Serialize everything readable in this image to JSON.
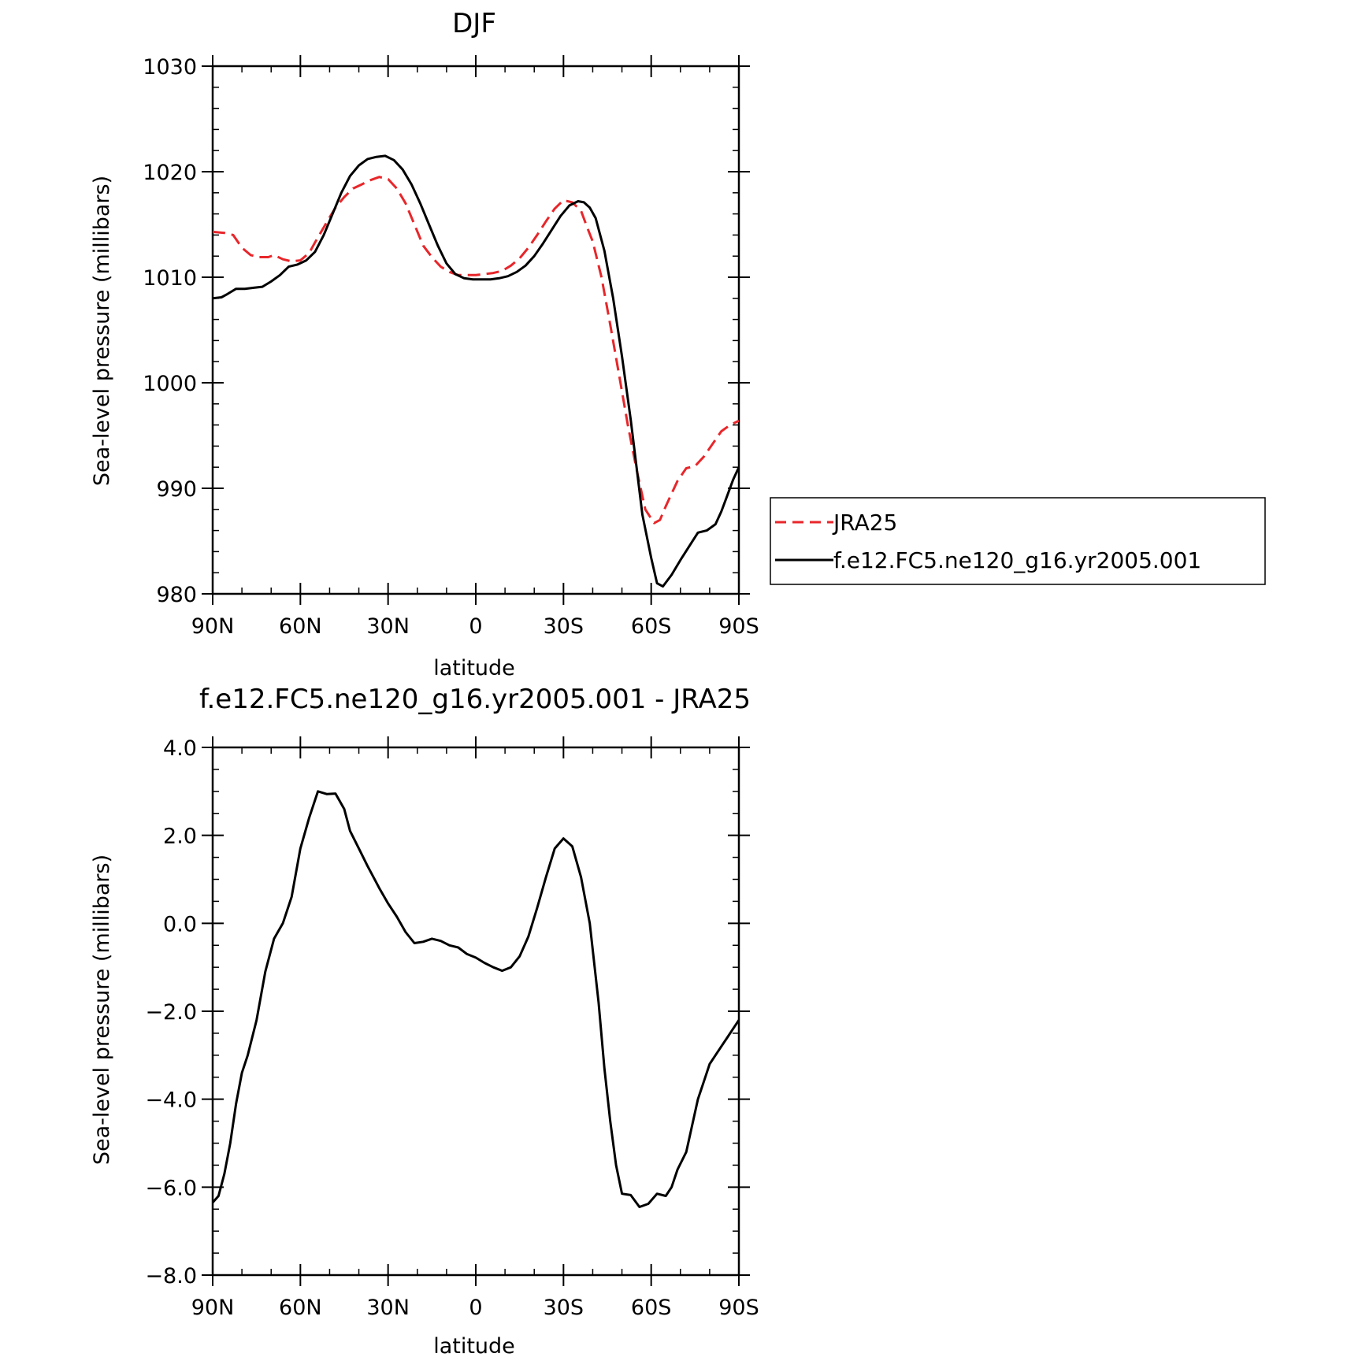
{
  "chart_data": [
    {
      "type": "line",
      "title": "DJF",
      "xlabel": "latitude",
      "ylabel": "Sea-level pressure (millibars)",
      "xlim": [
        90,
        -90
      ],
      "ylim": [
        980,
        1030
      ],
      "x_ticks": [
        90,
        60,
        30,
        0,
        -30,
        -60,
        -90
      ],
      "x_tick_labels": [
        "90N",
        "60N",
        "30N",
        "0",
        "30S",
        "60S",
        "90S"
      ],
      "y_ticks": [
        980,
        990,
        1000,
        1010,
        1020,
        1030
      ],
      "y_tick_labels": [
        "980",
        "990",
        "1000",
        "1010",
        "1020",
        "1030"
      ],
      "grid": false,
      "legend": "right",
      "series": [
        {
          "name": "JRA25",
          "color": "#e8262a",
          "dash": "dashed",
          "x": [
            90,
            86,
            83,
            80,
            77,
            74,
            71,
            69,
            66,
            63,
            60,
            57,
            55,
            51,
            48,
            45,
            42,
            39,
            36,
            33,
            30,
            27,
            24,
            21,
            18,
            15,
            12,
            9,
            6,
            3,
            0,
            -3,
            -6,
            -9,
            -12,
            -15,
            -18,
            -21,
            -24,
            -27,
            -30,
            -33,
            -36,
            -38,
            -40,
            -43,
            -46,
            -49,
            -52,
            -55,
            -58,
            -61,
            -63,
            -65,
            -67,
            -69,
            -72,
            -75,
            -78,
            -81,
            -84,
            -87,
            -90
          ],
          "y": [
            1014.3,
            1014.2,
            1014.0,
            1012.8,
            1012.1,
            1011.9,
            1011.9,
            1012.1,
            1011.7,
            1011.5,
            1011.6,
            1012.3,
            1013.3,
            1015.2,
            1016.6,
            1017.6,
            1018.4,
            1018.8,
            1019.2,
            1019.5,
            1019.3,
            1018.4,
            1017.0,
            1015.0,
            1013.0,
            1011.9,
            1011.0,
            1010.5,
            1010.2,
            1010.2,
            1010.2,
            1010.3,
            1010.4,
            1010.6,
            1011.1,
            1011.8,
            1012.8,
            1014.0,
            1015.3,
            1016.5,
            1017.3,
            1017.1,
            1016.3,
            1014.8,
            1013.4,
            1010.0,
            1005.5,
            1000.8,
            996.0,
            991.8,
            988.0,
            986.7,
            987.0,
            988.3,
            989.5,
            990.7,
            991.9,
            992.1,
            993.0,
            994.2,
            995.4,
            996.0,
            996.4
          ]
        },
        {
          "name": "f.e12.FC5.ne120_g16.yr2005.001",
          "color": "#000000",
          "dash": "solid",
          "x": [
            90,
            87,
            85,
            82,
            79,
            76,
            73,
            70,
            67,
            64,
            61,
            58,
            55,
            52,
            49,
            46,
            43,
            40,
            37,
            34,
            31,
            28,
            25,
            22,
            19,
            16,
            13,
            10,
            7,
            4,
            1,
            -2,
            -5,
            -8,
            -11,
            -14,
            -17,
            -20,
            -23,
            -26,
            -29,
            -32,
            -35,
            -37,
            -39,
            -41,
            -44,
            -47,
            -50,
            -53,
            -55,
            -57,
            -60,
            -62,
            -64,
            -67,
            -70,
            -73,
            -76,
            -79,
            -82,
            -84,
            -86,
            -88,
            -90
          ],
          "y": [
            1008.0,
            1008.1,
            1008.4,
            1008.9,
            1008.9,
            1009.0,
            1009.1,
            1009.6,
            1010.2,
            1011.0,
            1011.2,
            1011.6,
            1012.4,
            1014.0,
            1016.0,
            1018.0,
            1019.6,
            1020.6,
            1021.2,
            1021.4,
            1021.5,
            1021.1,
            1020.2,
            1018.8,
            1017.0,
            1015.0,
            1013.0,
            1011.3,
            1010.3,
            1009.9,
            1009.8,
            1009.8,
            1009.8,
            1009.9,
            1010.1,
            1010.5,
            1011.1,
            1012.0,
            1013.2,
            1014.5,
            1015.8,
            1016.8,
            1017.2,
            1017.1,
            1016.6,
            1015.6,
            1012.5,
            1008.0,
            1002.5,
            996.5,
            992.0,
            987.5,
            983.4,
            981.0,
            980.7,
            981.8,
            983.2,
            984.5,
            985.8,
            986.0,
            986.6,
            987.8,
            989.3,
            990.8,
            992.0
          ]
        }
      ]
    },
    {
      "type": "line",
      "title": "f.e12.FC5.ne120_g16.yr2005.001 - JRA25",
      "xlabel": "latitude",
      "ylabel": "Sea-level pressure (millibars)",
      "xlim": [
        90,
        -90
      ],
      "ylim": [
        -8,
        4
      ],
      "x_ticks": [
        90,
        60,
        30,
        0,
        -30,
        -60,
        -90
      ],
      "x_tick_labels": [
        "90N",
        "60N",
        "30N",
        "0",
        "30S",
        "60S",
        "90S"
      ],
      "y_ticks": [
        -8,
        -6,
        -4,
        -2,
        0,
        2,
        4
      ],
      "y_tick_labels": [
        "−8.0",
        "−6.0",
        "−4.0",
        "−2.0",
        "0.0",
        "2.0",
        "4.0"
      ],
      "grid": false,
      "series": [
        {
          "color": "#000000",
          "dash": "solid",
          "x": [
            90,
            88,
            86,
            84,
            82,
            80,
            78,
            75,
            72,
            69,
            66,
            63,
            60,
            57,
            54,
            51,
            48,
            45,
            43,
            40,
            37,
            35,
            33,
            30,
            27,
            24,
            21,
            18,
            15,
            12,
            9,
            6,
            3,
            0,
            -3,
            -6,
            -9,
            -12,
            -15,
            -18,
            -21,
            -24,
            -27,
            -30,
            -33,
            -36,
            -39,
            -42,
            -44,
            -46,
            -48,
            -50,
            -53,
            -56,
            -59,
            -62,
            -65,
            -67,
            -69,
            -72,
            -74,
            -76,
            -78,
            -80,
            -82,
            -84,
            -86,
            -88,
            -90
          ],
          "y": [
            -6.35,
            -6.2,
            -5.7,
            -5.0,
            -4.1,
            -3.4,
            -3.0,
            -2.2,
            -1.1,
            -0.35,
            0.0,
            0.6,
            1.7,
            2.4,
            3.0,
            2.94,
            2.95,
            2.6,
            2.1,
            1.7,
            1.3,
            1.05,
            0.8,
            0.45,
            0.15,
            -0.2,
            -0.45,
            -0.42,
            -0.35,
            -0.4,
            -0.5,
            -0.55,
            -0.7,
            -0.78,
            -0.9,
            -1.0,
            -1.08,
            -1.0,
            -0.75,
            -0.3,
            0.35,
            1.05,
            1.7,
            1.93,
            1.75,
            1.05,
            0.0,
            -1.8,
            -3.3,
            -4.5,
            -5.5,
            -6.15,
            -6.18,
            -6.45,
            -6.38,
            -6.15,
            -6.2,
            -6.0,
            -5.6,
            -5.2,
            -4.6,
            -4.0,
            -3.6,
            -3.2,
            -3.0,
            -2.8,
            -2.6,
            -2.4,
            -2.2
          ]
        }
      ]
    }
  ],
  "legend": {
    "items": [
      {
        "label": "JRA25",
        "color": "#e8262a",
        "dash": "dashed"
      },
      {
        "label": "f.e12.FC5.ne120_g16.yr2005.001",
        "color": "#000000",
        "dash": "solid"
      }
    ]
  }
}
